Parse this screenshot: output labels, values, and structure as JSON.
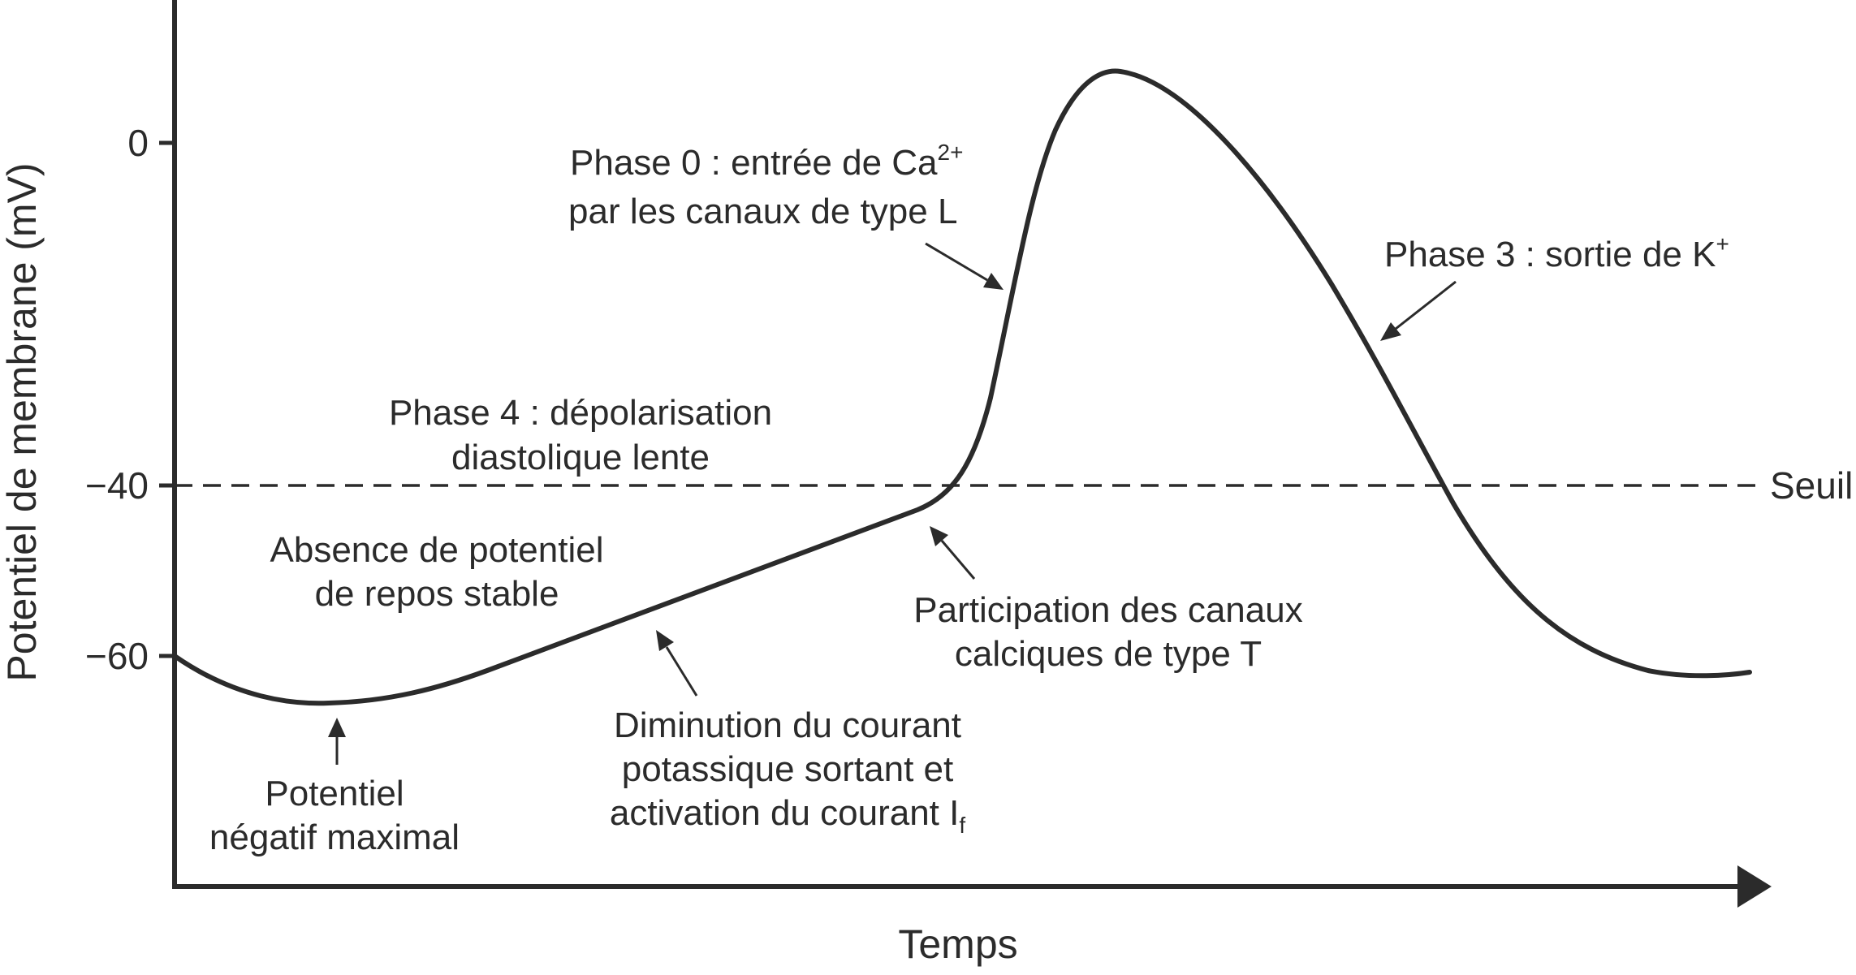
{
  "colors": {
    "ink": "#2b2b2b",
    "background": "#ffffff"
  },
  "axes": {
    "y_label": "Potentiel de membrane (mV)",
    "x_label": "Temps",
    "y_ticks": [
      "0",
      "−40",
      "−60"
    ]
  },
  "threshold": {
    "label": "Seuil",
    "value_mv": -40
  },
  "annotations": {
    "phase0": {
      "line1": "Phase 0 : entrée de Ca",
      "line1_sup": "2+",
      "line2": "par les canaux de type L"
    },
    "phase3": {
      "text": "Phase 3 : sortie de K",
      "sup": "+"
    },
    "phase4": {
      "line1": "Phase 4 : dépolarisation",
      "line2": "diastolique lente"
    },
    "absence": {
      "line1": "Absence de potentiel",
      "line2": "de repos stable"
    },
    "canaux_t": {
      "line1": "Participation des canaux",
      "line2": "calciques de type T"
    },
    "potentiel_max": {
      "line1": "Potentiel",
      "line2": "négatif maximal"
    },
    "diminution": {
      "line1": "Diminution du courant",
      "line2": "potassique sortant et",
      "line3": "activation du courant I",
      "line3_sub": "f"
    }
  }
}
